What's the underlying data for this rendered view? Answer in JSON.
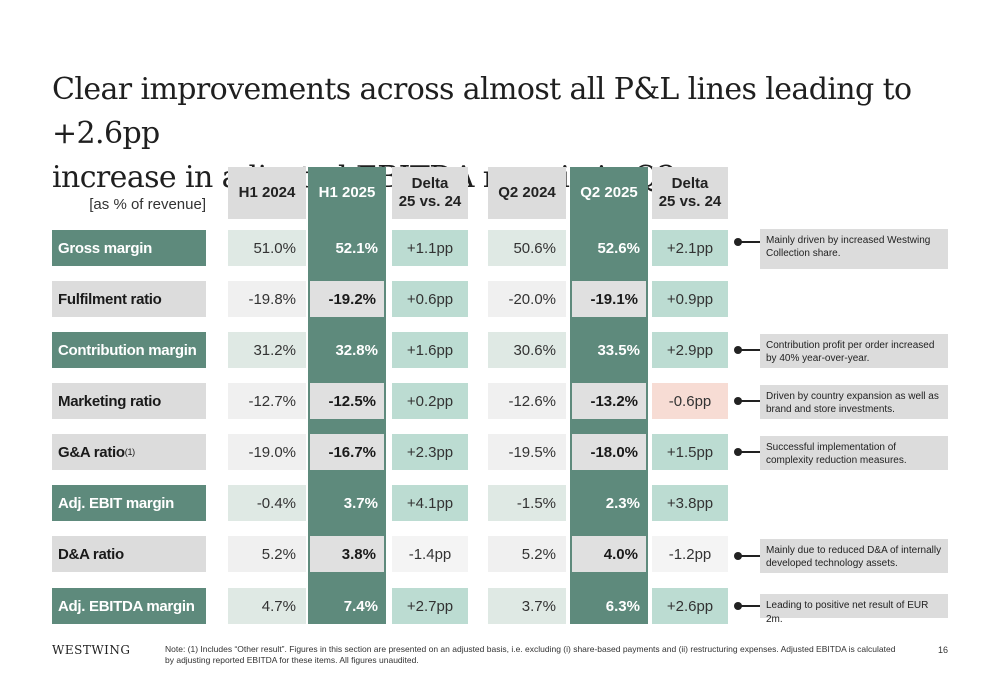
{
  "title_line1": "Clear improvements across almost all P&L lines leading to +2.6pp",
  "title_line2": "increase in adjusted EBITDA margin in Q2",
  "unit_label": "[as % of revenue]",
  "headers": {
    "h1_2024": "H1 2024",
    "h1_2025": "H1 2025",
    "delta_h1_l1": "Delta",
    "delta_h1_l2": "25 vs. 24",
    "q2_2024": "Q2 2024",
    "q2_2025": "Q2 2025",
    "delta_q2_l1": "Delta",
    "delta_q2_l2": "25 vs. 24"
  },
  "rows": [
    {
      "label": "Gross margin",
      "h1_2024": "51.0%",
      "h1_2025": "52.1%",
      "delta_h1": "+1.1pp",
      "q2_2024": "50.6%",
      "q2_2025": "52.6%",
      "delta_q2": "+2.1pp",
      "note": "Mainly driven by increased Westwing Collection share."
    },
    {
      "label": "Fulfilment ratio",
      "h1_2024": "-19.8%",
      "h1_2025": "-19.2%",
      "delta_h1": "+0.6pp",
      "q2_2024": "-20.0%",
      "q2_2025": "-19.1%",
      "delta_q2": "+0.9pp",
      "note": ""
    },
    {
      "label": "Contribution margin",
      "h1_2024": "31.2%",
      "h1_2025": "32.8%",
      "delta_h1": "+1.6pp",
      "q2_2024": "30.6%",
      "q2_2025": "33.5%",
      "delta_q2": "+2.9pp",
      "note": "Contribution profit per order increased by 40% year-over-year."
    },
    {
      "label": "Marketing ratio",
      "h1_2024": "-12.7%",
      "h1_2025": "-12.5%",
      "delta_h1": "+0.2pp",
      "q2_2024": "-12.6%",
      "q2_2025": "-13.2%",
      "delta_q2": "-0.6pp",
      "note": "Driven by country expansion as well as brand and store investments."
    },
    {
      "label": "G&A ratio",
      "label_sup": "(1)",
      "h1_2024": "-19.0%",
      "h1_2025": "-16.7%",
      "delta_h1": "+2.3pp",
      "q2_2024": "-19.5%",
      "q2_2025": "-18.0%",
      "delta_q2": "+1.5pp",
      "note": "Successful implementation of complexity reduction measures."
    },
    {
      "label": "Adj. EBIT margin",
      "h1_2024": "-0.4%",
      "h1_2025": "3.7%",
      "delta_h1": "+4.1pp",
      "q2_2024": "-1.5%",
      "q2_2025": "2.3%",
      "delta_q2": "+3.8pp",
      "note": ""
    },
    {
      "label": "D&A ratio",
      "h1_2024": "5.2%",
      "h1_2025": "3.8%",
      "delta_h1": "-1.4pp",
      "q2_2024": "5.2%",
      "q2_2025": "4.0%",
      "delta_q2": "-1.2pp",
      "note": "Mainly due to reduced D&A of internally developed technology assets."
    },
    {
      "label": "Adj. EBITDA margin",
      "h1_2024": "4.7%",
      "h1_2025": "7.4%",
      "delta_h1": "+2.7pp",
      "q2_2024": "3.7%",
      "q2_2025": "6.3%",
      "delta_q2": "+2.6pp",
      "note": "Leading to positive net result of EUR 2m."
    }
  ],
  "footer": {
    "logo": "WESTWING",
    "note": "Note: (1) Includes “Other result”. Figures in this section are presented on an adjusted basis, i.e. excluding (i) share-based payments and (ii) restructuring expenses. Adjusted EBITDA is calculated by adjusting reported EBITDA for these items. All figures unaudited.",
    "page": "16"
  },
  "colors": {
    "accent_green": "#5e8a7c",
    "light_green": "#dfe9e4",
    "teal": "#bcdcd2",
    "pink": "#f7dcd4",
    "gray": "#dcdcdc"
  }
}
